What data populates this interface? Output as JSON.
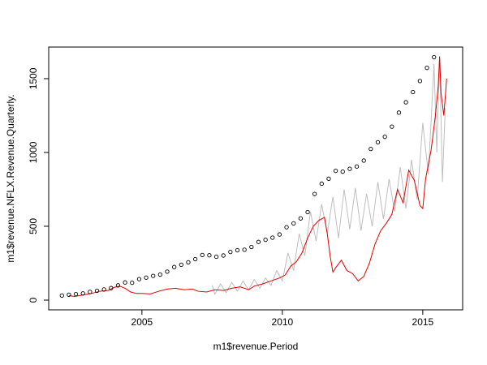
{
  "chart_data": {
    "type": "scatter",
    "x_label": "m1$revenue.Period",
    "y_label": "m1$revenue.NFLX.Revenue.Quarterly.",
    "xlim": [
      2001.68,
      2016.42
    ],
    "ylim": [
      -66,
      1714
    ],
    "xticks": [
      2005,
      2010,
      2015
    ],
    "yticks": [
      0,
      500,
      1000,
      1500
    ],
    "series": [
      {
        "type": "line",
        "color": "#bebebe",
        "x": [
          2007.5,
          2007.6,
          2007.8,
          2008.0,
          2008.2,
          2008.4,
          2008.6,
          2008.8,
          2009.0,
          2009.2,
          2009.4,
          2009.6,
          2009.8,
          2010.0,
          2010.2,
          2010.4,
          2010.6,
          2010.8,
          2011.0,
          2011.2,
          2011.4,
          2011.6,
          2011.8,
          2012.0,
          2012.2,
          2012.4,
          2012.6,
          2012.8,
          2013.0,
          2013.2,
          2013.4,
          2013.6,
          2013.8,
          2014.0,
          2014.2,
          2014.4,
          2014.6,
          2014.8,
          2015.0,
          2015.2,
          2015.4,
          2015.5,
          2015.6,
          2015.7,
          2015.8
        ],
        "values": [
          100,
          40,
          110,
          50,
          120,
          60,
          130,
          70,
          140,
          80,
          150,
          100,
          200,
          130,
          320,
          200,
          450,
          300,
          600,
          400,
          650,
          450,
          700,
          420,
          750,
          480,
          760,
          470,
          720,
          500,
          800,
          550,
          820,
          600,
          900,
          620,
          950,
          680,
          1200,
          850,
          1600,
          1000,
          1650,
          800,
          1300
        ]
      },
      {
        "type": "line",
        "color": "#e00000",
        "x": [
          2002.4,
          2002.6,
          2002.9,
          2003.2,
          2003.5,
          2003.8,
          2004.0,
          2004.2,
          2004.4,
          2004.6,
          2004.8,
          2005.0,
          2005.3,
          2005.6,
          2005.9,
          2006.2,
          2006.5,
          2006.8,
          2007.0,
          2007.3,
          2007.6,
          2007.9,
          2008.2,
          2008.5,
          2008.8,
          2009.0,
          2009.3,
          2009.6,
          2009.9,
          2010.1,
          2010.3,
          2010.5,
          2010.7,
          2010.9,
          2011.1,
          2011.3,
          2011.5,
          2011.6,
          2011.7,
          2011.8,
          2011.9,
          2012.1,
          2012.3,
          2012.5,
          2012.7,
          2012.9,
          2013.1,
          2013.3,
          2013.5,
          2013.7,
          2013.9,
          2014.1,
          2014.3,
          2014.5,
          2014.7,
          2014.9,
          2015.0,
          2015.1,
          2015.3,
          2015.45,
          2015.55,
          2015.6,
          2015.65,
          2015.75,
          2015.85
        ],
        "values": [
          30,
          25,
          35,
          45,
          60,
          65,
          85,
          95,
          80,
          55,
          45,
          45,
          42,
          60,
          75,
          80,
          70,
          75,
          60,
          55,
          70,
          65,
          80,
          90,
          70,
          95,
          110,
          130,
          150,
          170,
          230,
          260,
          320,
          420,
          500,
          540,
          560,
          450,
          300,
          190,
          220,
          270,
          200,
          180,
          130,
          160,
          250,
          380,
          470,
          520,
          580,
          750,
          660,
          880,
          810,
          640,
          620,
          820,
          1020,
          1250,
          1450,
          1650,
          1400,
          1250,
          1500
        ]
      },
      {
        "type": "points",
        "color": "#000000",
        "x": [
          2002.15,
          2002.4,
          2002.65,
          2002.9,
          2003.15,
          2003.4,
          2003.65,
          2003.9,
          2004.15,
          2004.4,
          2004.65,
          2004.9,
          2005.15,
          2005.4,
          2005.65,
          2005.9,
          2006.15,
          2006.4,
          2006.65,
          2006.9,
          2007.15,
          2007.4,
          2007.65,
          2007.9,
          2008.15,
          2008.4,
          2008.65,
          2008.9,
          2009.15,
          2009.4,
          2009.65,
          2009.9,
          2010.15,
          2010.4,
          2010.65,
          2010.9,
          2011.15,
          2011.4,
          2011.65,
          2011.9,
          2012.15,
          2012.4,
          2012.65,
          2012.9,
          2013.15,
          2013.4,
          2013.65,
          2013.9,
          2014.15,
          2014.4,
          2014.65,
          2014.9,
          2015.15,
          2015.4
        ],
        "values": [
          30.5,
          36.4,
          40.4,
          45.2,
          55.7,
          63.2,
          72.2,
          81.2,
          99.8,
          119.7,
          117.5,
          142.1,
          152.4,
          164.0,
          172.7,
          193.0,
          224.1,
          239.4,
          255.9,
          277.2,
          305.3,
          303.7,
          294.0,
          302.4,
          326.2,
          337.6,
          341.3,
          359.6,
          394.1,
          408.5,
          423.1,
          444.5,
          493.7,
          519.8,
          553.2,
          596.2,
          718.6,
          788.6,
          821.8,
          875.6,
          869.8,
          889.2,
          905.1,
          945.2,
          1024,
          1069,
          1106,
          1175,
          1270,
          1340,
          1409,
          1484,
          1573,
          1645
        ]
      }
    ]
  }
}
